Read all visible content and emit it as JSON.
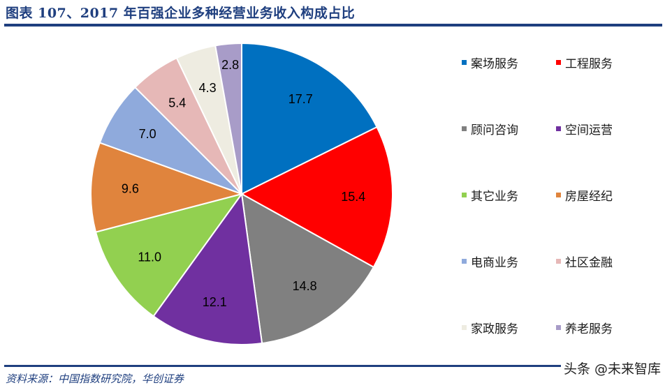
{
  "title": "图表 107、2017 年百强企业多种经营业务收入构成占比",
  "source": "资料来源：中国指数研究院，华创证券",
  "watermark": "头条 @未来智库",
  "colors": {
    "title": "#1f3f7f",
    "rule": "#1f3f7f"
  },
  "chart_data": {
    "type": "pie",
    "title": "2017 年百强企业多种经营业务收入构成占比",
    "unit": "%",
    "start_angle_deg": 0,
    "direction": "clockwise",
    "legend_position": "right",
    "categories": [
      "案场服务",
      "工程服务",
      "顾问咨询",
      "空间运营",
      "其它业务",
      "房屋经纪",
      "电商业务",
      "社区金融",
      "家政服务",
      "养老服务"
    ],
    "values": [
      17.7,
      15.4,
      14.8,
      12.1,
      11.0,
      9.6,
      7.0,
      5.4,
      4.3,
      2.8
    ],
    "labels": [
      "17.7",
      "15.4",
      "14.8",
      "12.1",
      "11.0",
      "9.6",
      "7.0",
      "5.4",
      "4.3",
      "2.8"
    ],
    "colors": [
      "#0070c0",
      "#ff0000",
      "#808080",
      "#7030a0",
      "#92d050",
      "#e0843d",
      "#8faadc",
      "#e6b8b7",
      "#eeece1",
      "#a89cc8"
    ]
  },
  "legend": {
    "items": [
      {
        "label": "案场服务",
        "color": "#0070c0"
      },
      {
        "label": "工程服务",
        "color": "#ff0000"
      },
      {
        "label": "顾问咨询",
        "color": "#808080"
      },
      {
        "label": "空间运营",
        "color": "#7030a0"
      },
      {
        "label": "其它业务",
        "color": "#92d050"
      },
      {
        "label": "房屋经纪",
        "color": "#e0843d"
      },
      {
        "label": "电商业务",
        "color": "#8faadc"
      },
      {
        "label": "社区金融",
        "color": "#e6b8b7"
      },
      {
        "label": "家政服务",
        "color": "#eeece1"
      },
      {
        "label": "养老服务",
        "color": "#a89cc8"
      }
    ]
  }
}
